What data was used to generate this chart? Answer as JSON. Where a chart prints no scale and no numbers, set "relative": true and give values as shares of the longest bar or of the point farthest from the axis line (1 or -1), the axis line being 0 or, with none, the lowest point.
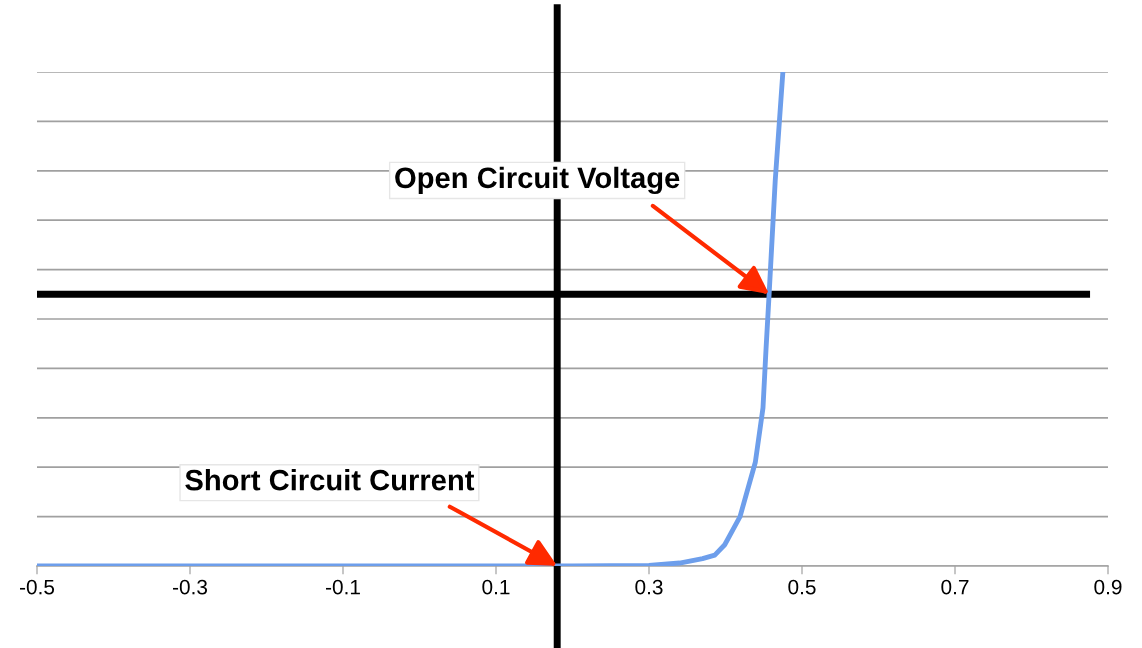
{
  "chart_data": {
    "type": "line",
    "relative": true,
    "x": [
      -0.5,
      0.0,
      0.2,
      0.3,
      0.34,
      0.37,
      0.386,
      0.399,
      0.419,
      0.439,
      0.449,
      0.453,
      0.457,
      0.465,
      0.475
    ],
    "series": [
      {
        "color": "#6d9eeb",
        "values": [
          0,
          0,
          0,
          0.001,
          0.006,
          0.015,
          0.022,
          0.043,
          0.1,
          0.21,
          0.32,
          0.44,
          0.55,
          0.78,
          1
        ]
      }
    ],
    "xlim": [
      -0.5,
      0.9
    ],
    "xticks": [
      {
        "value": -0.5,
        "label": "-0.5"
      },
      {
        "value": -0.3,
        "label": "-0.3"
      },
      {
        "value": -0.1,
        "label": "-0.1"
      },
      {
        "value": 0.1,
        "label": "0.1"
      },
      {
        "value": 0.3,
        "label": "0.3"
      },
      {
        "value": 0.5,
        "label": "0.5"
      },
      {
        "value": 0.7,
        "label": "0.7"
      },
      {
        "value": 0.9,
        "label": "0.9"
      }
    ],
    "grid": "y",
    "tick_labels": "x",
    "marker": "none",
    "line_style": "solid",
    "ref_lines": [
      {
        "axis": "x",
        "value": 0.18,
        "color": "#000000"
      },
      {
        "axis": "y",
        "value": 0.55,
        "color": "#000000"
      }
    ],
    "annotations": [
      {
        "text": "Open Circuit Voltage",
        "x": 0.457,
        "y": 0.55
      },
      {
        "text": "Short Circuit Current",
        "x": 0.18,
        "y": 0
      }
    ]
  }
}
